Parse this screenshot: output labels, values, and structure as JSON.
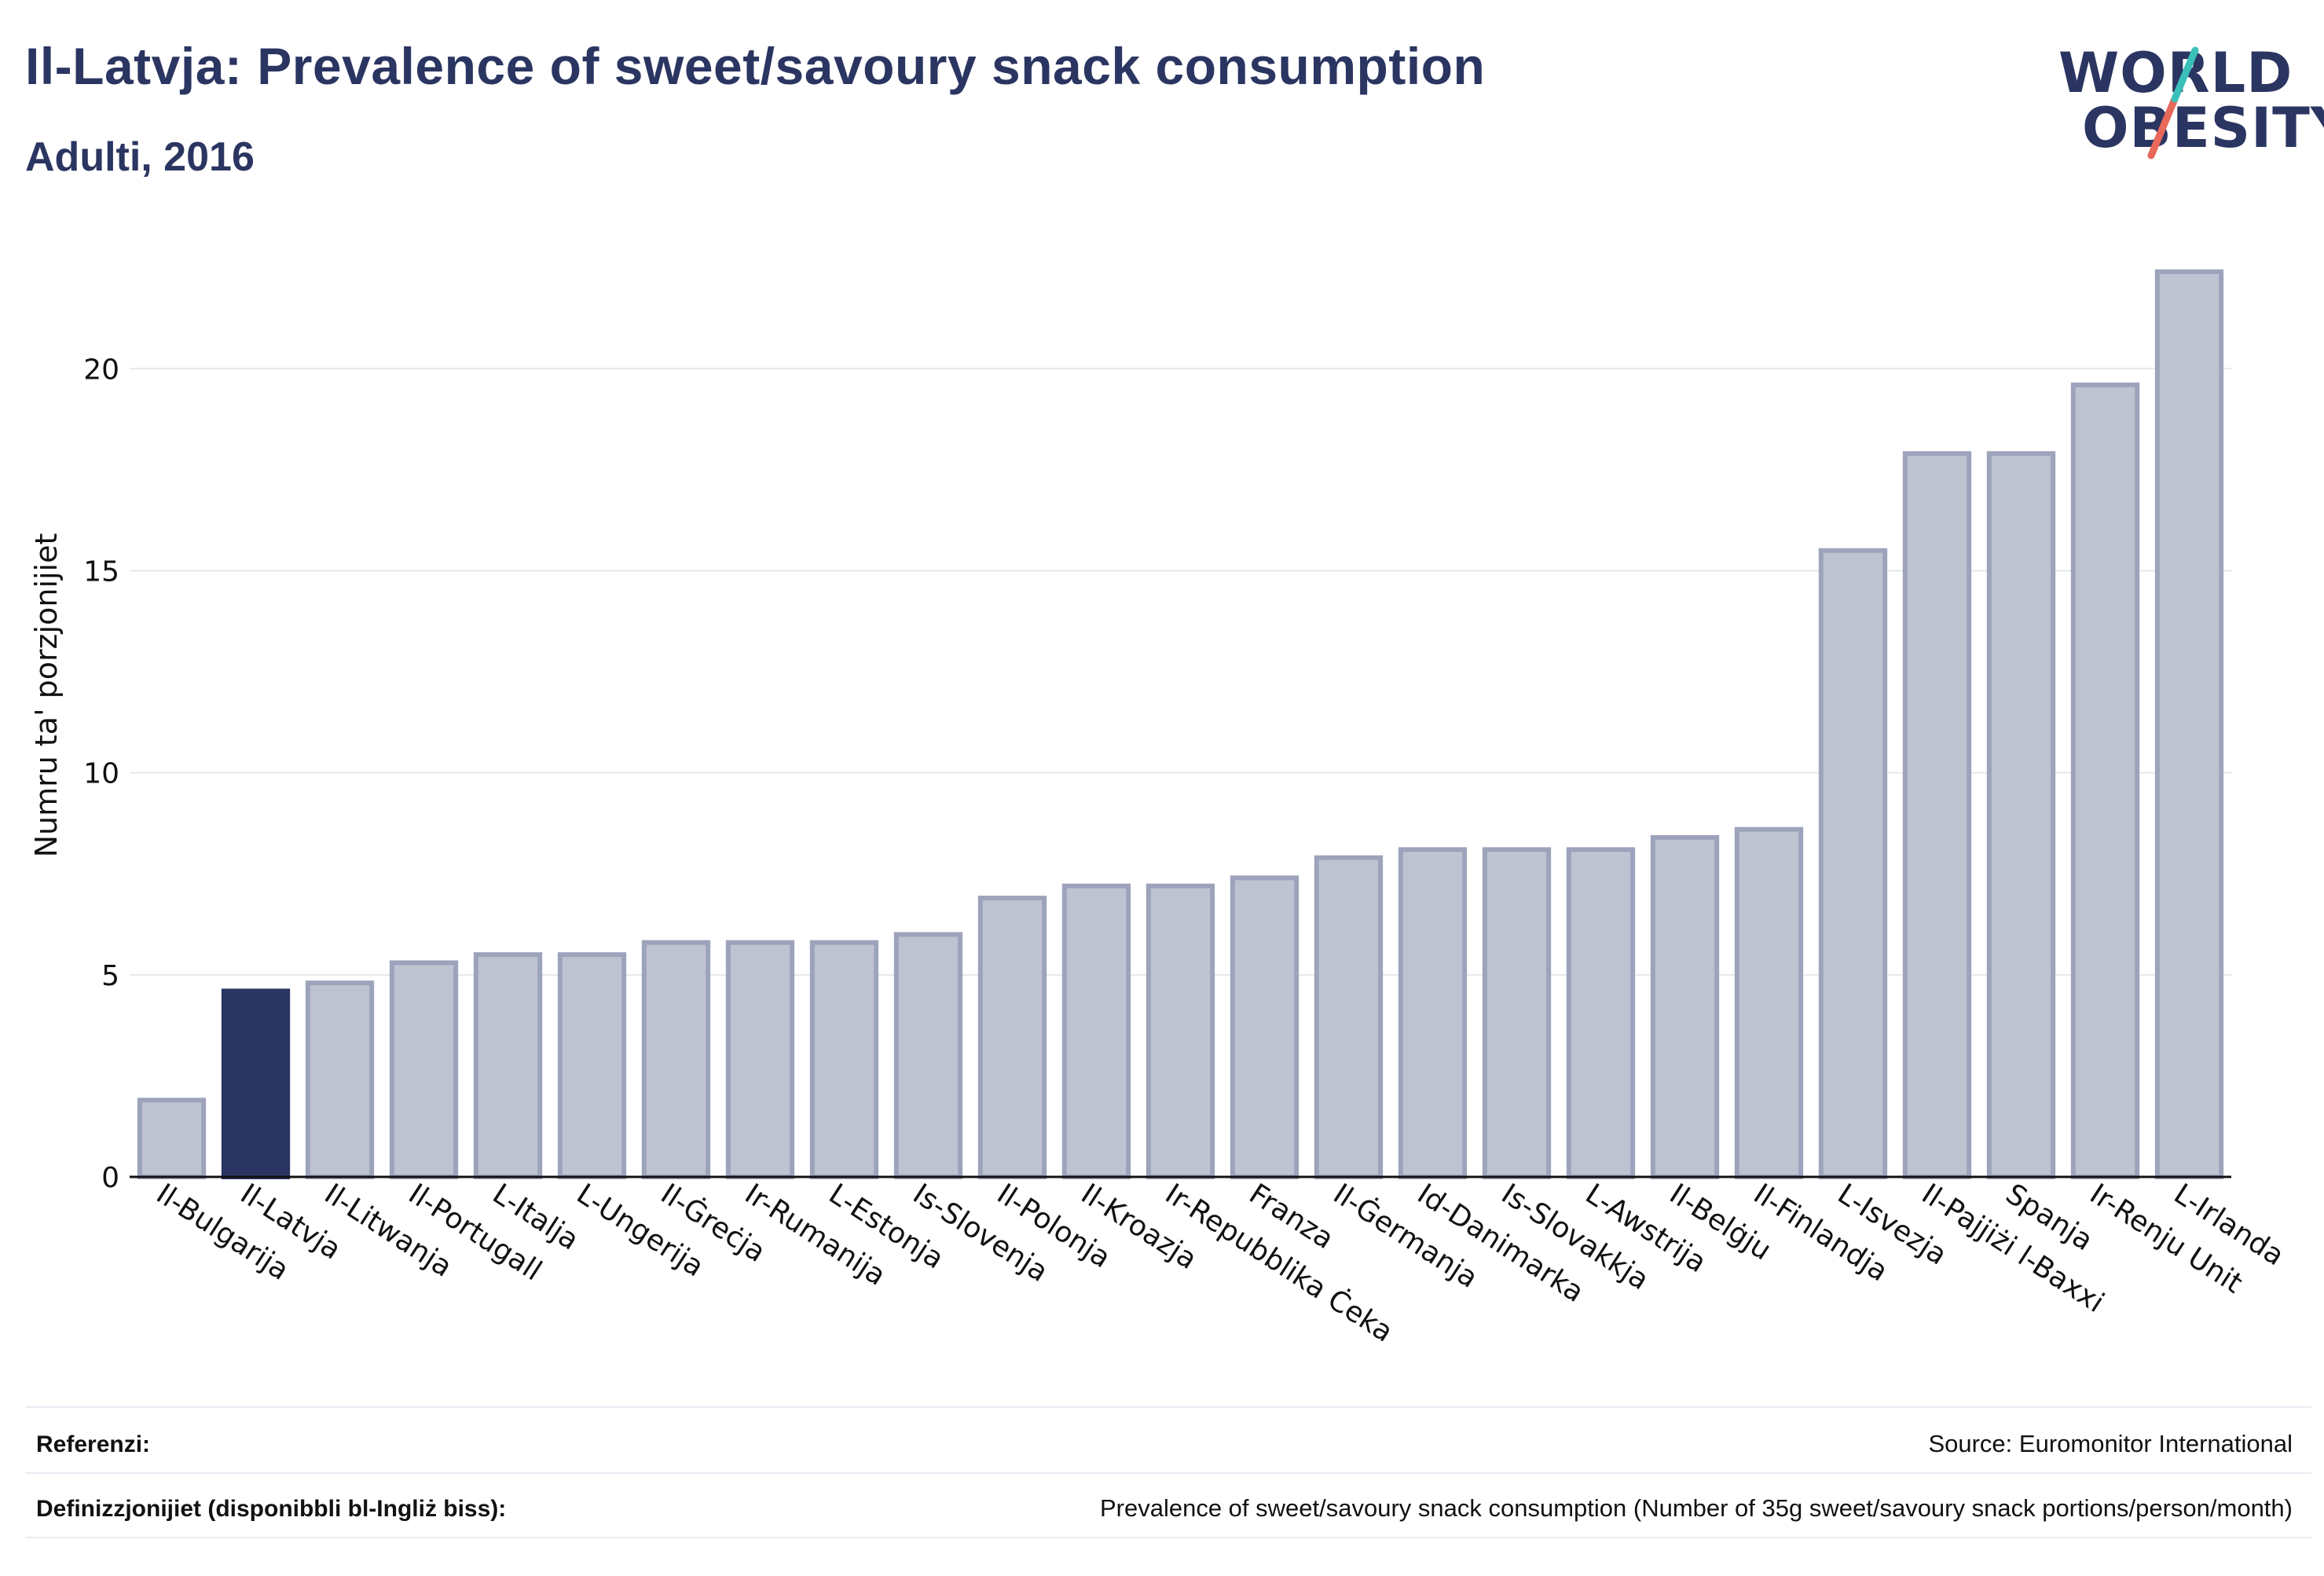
{
  "header": {
    "title": "Il-Latvja: Prevalence of sweet/savoury snack consumption",
    "subtitle": "Adulti, 2016"
  },
  "logo": {
    "line1": "WORLD",
    "line2": "OBESITY",
    "accent_teal": "#3bbfb9",
    "accent_coral": "#e8685a"
  },
  "colors": {
    "highlight": "#2b3561",
    "bar": "#bfc3d1",
    "bar_edge": "#9da3bb",
    "grid": "#e6e8ee"
  },
  "chart_data": {
    "type": "bar",
    "title": "Il-Latvja: Prevalence of sweet/savoury snack consumption",
    "subtitle": "Adulti, 2016",
    "xlabel": "",
    "ylabel": "Numru ta' porzjonijiet",
    "ylim": [
      0,
      23
    ],
    "yticks": [
      0,
      5,
      10,
      15,
      20
    ],
    "grid": true,
    "highlight": "Il-Latvja",
    "categories": [
      "Il-Bulgarija",
      "Il-Latvja",
      "Il-Litwanja",
      "Il-Portugall",
      "L-Italja",
      "L-Ungerija",
      "Il-Ġreċja",
      "Ir-Rumanija",
      "L-Estonja",
      "Is-Slovenja",
      "Il-Polonja",
      "Il-Kroazja",
      "Ir-Repubblika Ċeka",
      "Franza",
      "Il-Ġermanja",
      "Id-Danimarka",
      "Is-Slovakkja",
      "L-Awstrija",
      "Il-Belġju",
      "Il-Finlandja",
      "L-Isvezja",
      "Il-Pajjiżi l-Baxxi",
      "Spanja",
      "Ir-Renju Unit",
      "L-Irlanda"
    ],
    "values": [
      1.9,
      4.6,
      4.8,
      5.3,
      5.5,
      5.5,
      5.8,
      5.8,
      5.8,
      6.0,
      6.9,
      7.2,
      7.2,
      7.4,
      7.9,
      8.1,
      8.1,
      8.1,
      8.4,
      8.6,
      15.5,
      17.9,
      17.9,
      19.6,
      22.4
    ]
  },
  "footer": {
    "references_label": "Referenzi:",
    "references_value": "Source: Euromonitor International",
    "definitions_label": "Definizzjonijiet (disponibbli bl-Ingliż biss):",
    "definitions_value": "Prevalence of sweet/savoury snack consumption (Number of 35g sweet/savoury snack portions/person/month)"
  }
}
